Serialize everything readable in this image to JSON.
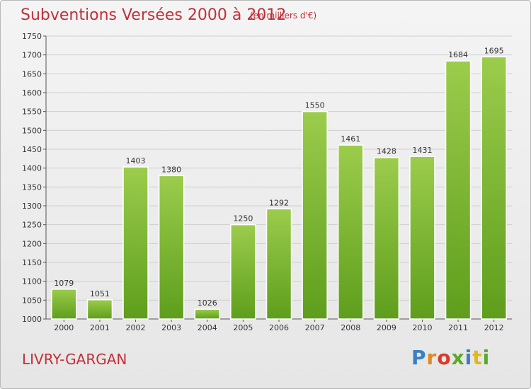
{
  "header": {
    "title": "Subventions Versées 2000 à 2012",
    "subtitle": "(en milliers d'€)"
  },
  "footer": {
    "city": "LIVRY-GARGAN",
    "logo_text": "Proxiti",
    "logo_colors": [
      "#3a7fc4",
      "#e08a1e",
      "#d93a2a",
      "#5aaa2a",
      "#3a7fc4",
      "#e0b81e",
      "#5aaa2a"
    ]
  },
  "colors": {
    "bar_top": "#9ccc4c",
    "bar_bottom": "#5e9e1c",
    "grid": "#cfcfcf",
    "title": "#c0303a"
  },
  "chart_data": {
    "type": "bar",
    "title": "Subventions Versées 2000 à 2012",
    "subtitle": "(en milliers d'€)",
    "xlabel": "",
    "ylabel": "",
    "categories": [
      "2000",
      "2001",
      "2002",
      "2003",
      "2004",
      "2005",
      "2006",
      "2007",
      "2008",
      "2009",
      "2010",
      "2011",
      "2012"
    ],
    "values": [
      1079,
      1051,
      1403,
      1380,
      1026,
      1250,
      1292,
      1550,
      1461,
      1428,
      1431,
      1684,
      1695
    ],
    "ylim": [
      1000,
      1750
    ],
    "yticks": [
      1000,
      1050,
      1100,
      1150,
      1200,
      1250,
      1300,
      1350,
      1400,
      1450,
      1500,
      1550,
      1600,
      1650,
      1700,
      1750
    ],
    "grid": true,
    "legend": "none"
  }
}
